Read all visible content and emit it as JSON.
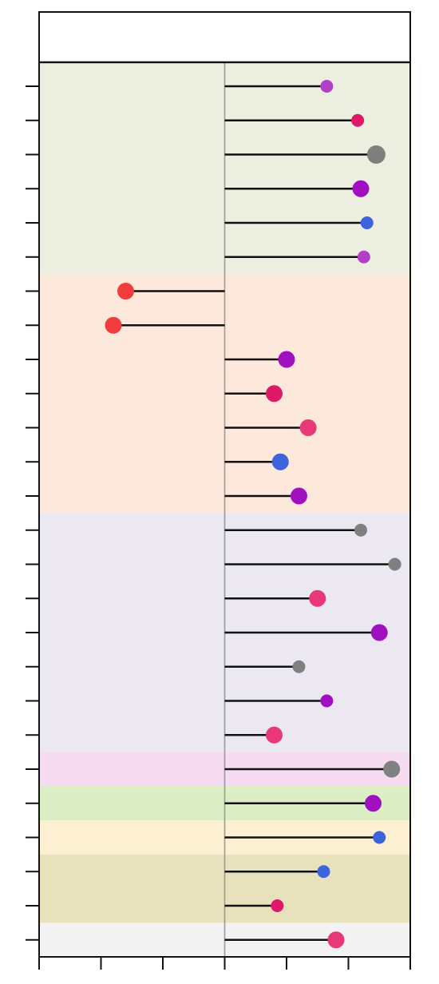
{
  "chart_data": {
    "type": "lollipop",
    "orientation": "horizontal",
    "xlim": [
      -3,
      3
    ],
    "x_tick_count": 7,
    "grid": false,
    "legend": "none",
    "header_strip": "empty",
    "rows": [
      {
        "value": 1.65,
        "color": "#b040c8",
        "size": "small"
      },
      {
        "value": 2.15,
        "color": "#e0186a",
        "size": "small"
      },
      {
        "value": 2.45,
        "color": "#7f7f7f",
        "size": "large"
      },
      {
        "value": 2.2,
        "color": "#a010c0",
        "size": "medium"
      },
      {
        "value": 2.3,
        "color": "#3c64dc",
        "size": "small"
      },
      {
        "value": 2.25,
        "color": "#b040c8",
        "size": "small"
      },
      {
        "value": -1.6,
        "color": "#f03c3c",
        "size": "medium"
      },
      {
        "value": -1.8,
        "color": "#f03c3c",
        "size": "medium"
      },
      {
        "value": 1.0,
        "color": "#a010c0",
        "size": "medium"
      },
      {
        "value": 0.8,
        "color": "#e0186a",
        "size": "medium"
      },
      {
        "value": 1.35,
        "color": "#e83878",
        "size": "medium"
      },
      {
        "value": 0.9,
        "color": "#3c64dc",
        "size": "medium"
      },
      {
        "value": 1.2,
        "color": "#a010c0",
        "size": "medium"
      },
      {
        "value": 2.2,
        "color": "#808080",
        "size": "small"
      },
      {
        "value": 2.75,
        "color": "#808080",
        "size": "small"
      },
      {
        "value": 1.5,
        "color": "#e83878",
        "size": "medium"
      },
      {
        "value": 2.5,
        "color": "#a010c0",
        "size": "medium"
      },
      {
        "value": 1.2,
        "color": "#808080",
        "size": "small"
      },
      {
        "value": 1.65,
        "color": "#a010c0",
        "size": "small"
      },
      {
        "value": 0.8,
        "color": "#e83878",
        "size": "medium"
      },
      {
        "value": 2.7,
        "color": "#808080",
        "size": "medium"
      },
      {
        "value": 2.4,
        "color": "#a010c0",
        "size": "medium"
      },
      {
        "value": 2.5,
        "color": "#3c64dc",
        "size": "small"
      },
      {
        "value": 1.6,
        "color": "#3c64dc",
        "size": "small"
      },
      {
        "value": 0.85,
        "color": "#e0186a",
        "size": "small"
      },
      {
        "value": 1.8,
        "color": "#e83878",
        "size": "medium"
      }
    ],
    "groups": [
      {
        "start": 0,
        "end": 5,
        "color": "#ecefe0"
      },
      {
        "start": 6,
        "end": 12,
        "color": "#fde8dc"
      },
      {
        "start": 13,
        "end": 19,
        "color": "#ebe8f2"
      },
      {
        "start": 20,
        "end": 20,
        "color": "#f5dcf0"
      },
      {
        "start": 21,
        "end": 21,
        "color": "#dcefc4"
      },
      {
        "start": 22,
        "end": 22,
        "color": "#fdf0d2"
      },
      {
        "start": 23,
        "end": 24,
        "color": "#e8e2bc"
      },
      {
        "start": 25,
        "end": 25,
        "color": "#f2f2f2"
      }
    ]
  }
}
